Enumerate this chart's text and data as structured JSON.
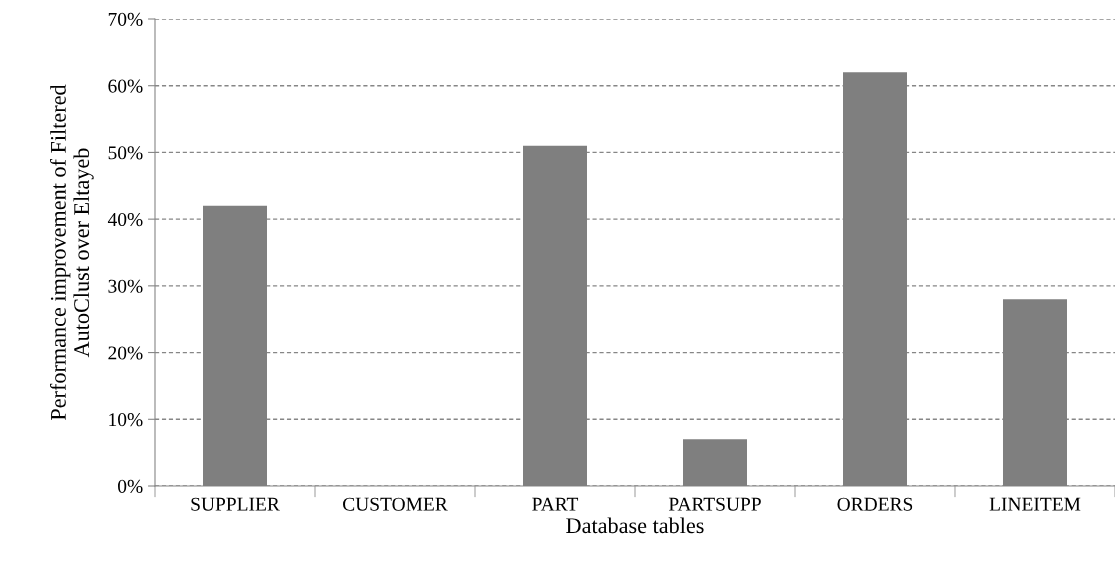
{
  "chart_data": {
    "type": "bar",
    "xlabel": "Database tables",
    "ylabel": "Performance improvement of Filtered\nAutoClust over Eltayeb",
    "categories": [
      "SUPPLIER",
      "CUSTOMER",
      "PART",
      "PARTSUPP",
      "ORDERS",
      "LINEITEM"
    ],
    "values": [
      42,
      0,
      51,
      7,
      62,
      28
    ],
    "color": "#7f7f7f",
    "ylim": [
      0,
      70
    ],
    "yticks": [
      {
        "value": 0,
        "label": "0%"
      },
      {
        "value": 10,
        "label": "10%"
      },
      {
        "value": 20,
        "label": "20%"
      },
      {
        "value": 30,
        "label": "30%"
      },
      {
        "value": 40,
        "label": "40%"
      },
      {
        "value": 50,
        "label": "50%"
      },
      {
        "value": 60,
        "label": "60%"
      },
      {
        "value": 70,
        "label": "70%"
      }
    ],
    "grid": "y",
    "legend": false
  }
}
